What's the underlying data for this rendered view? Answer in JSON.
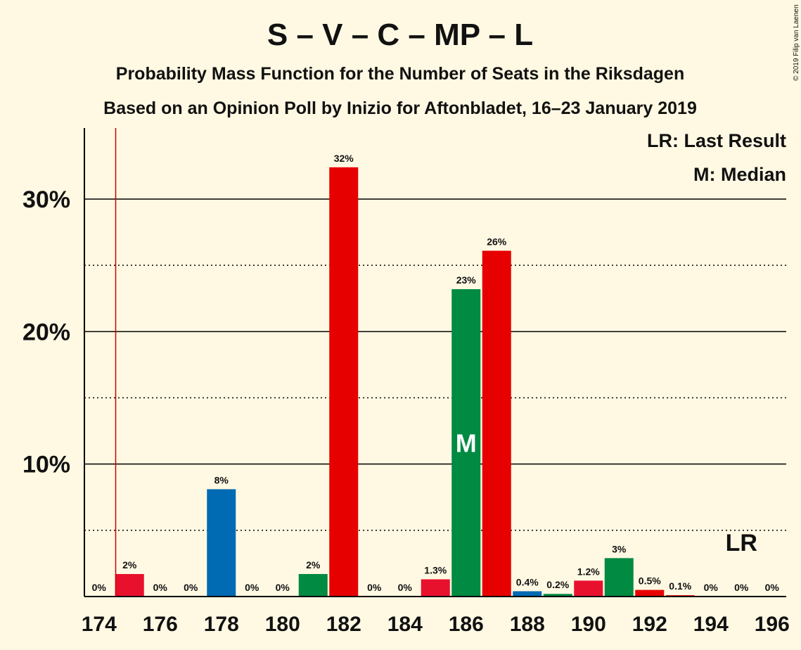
{
  "chart_data": {
    "type": "bar",
    "title": "S – V – C – MP – L",
    "subtitle_lines": [
      "Probability Mass Function for the Number of Seats in the Riksdagen",
      "Based on an Opinion Poll by Inizio for Aftonbladet, 16–23 January 2019"
    ],
    "copyright": "© 2019 Filip van Laenen",
    "x": [
      174,
      175,
      176,
      177,
      178,
      179,
      180,
      181,
      182,
      183,
      184,
      185,
      186,
      187,
      188,
      189,
      190,
      191,
      192,
      193,
      194,
      195,
      196
    ],
    "values": [
      0,
      1.7,
      0,
      0,
      8.1,
      0,
      0,
      1.7,
      32.4,
      0,
      0,
      1.3,
      23.2,
      26.1,
      0.4,
      0.2,
      1.2,
      2.9,
      0.5,
      0.1,
      0,
      0,
      0
    ],
    "value_labels": [
      "0%",
      "2%",
      "0%",
      "0%",
      "8%",
      "0%",
      "0%",
      "2%",
      "32%",
      "0%",
      "0%",
      "1.3%",
      "23%",
      "26%",
      "0.4%",
      "0.2%",
      "1.2%",
      "3%",
      "0.5%",
      "0.1%",
      "0%",
      "0%",
      "0%"
    ],
    "x_tick_labels": [
      "174",
      "176",
      "178",
      "180",
      "182",
      "184",
      "186",
      "188",
      "190",
      "192",
      "194",
      "196"
    ],
    "y_tick_labels": [
      "10%",
      "20%",
      "30%"
    ],
    "ylim": [
      0,
      35.3
    ],
    "y_major_gridlines": [
      10,
      20,
      30
    ],
    "y_minor_gridlines": [
      5,
      15,
      25
    ],
    "last_result": 175,
    "median": 186,
    "legend": {
      "placement": "top-right",
      "last_result_text": "LR: Last Result",
      "median_text": "M: Median"
    },
    "markers": {
      "median": "M",
      "last_result": "LR"
    },
    "colors": {
      "S": "#E8112D",
      "V": "#DA291C",
      "C": "#009933",
      "MP": "#83CF39",
      "L": "#006AB3",
      "blue": "#006AB3",
      "red": "#E60000",
      "light_red": "#E8112D",
      "green": "#008A42",
      "last_result_line": "#CC0000",
      "background": "#FFF9E3"
    },
    "bar_color_keys": [
      "light_red",
      "light_red",
      "light_red",
      "light_red",
      "blue",
      "blue",
      "blue",
      "green",
      "red",
      "light_red",
      "light_red",
      "light_red",
      "green",
      "red",
      "blue",
      "green",
      "light_red",
      "green",
      "red",
      "red",
      "red",
      "red",
      "red"
    ]
  }
}
